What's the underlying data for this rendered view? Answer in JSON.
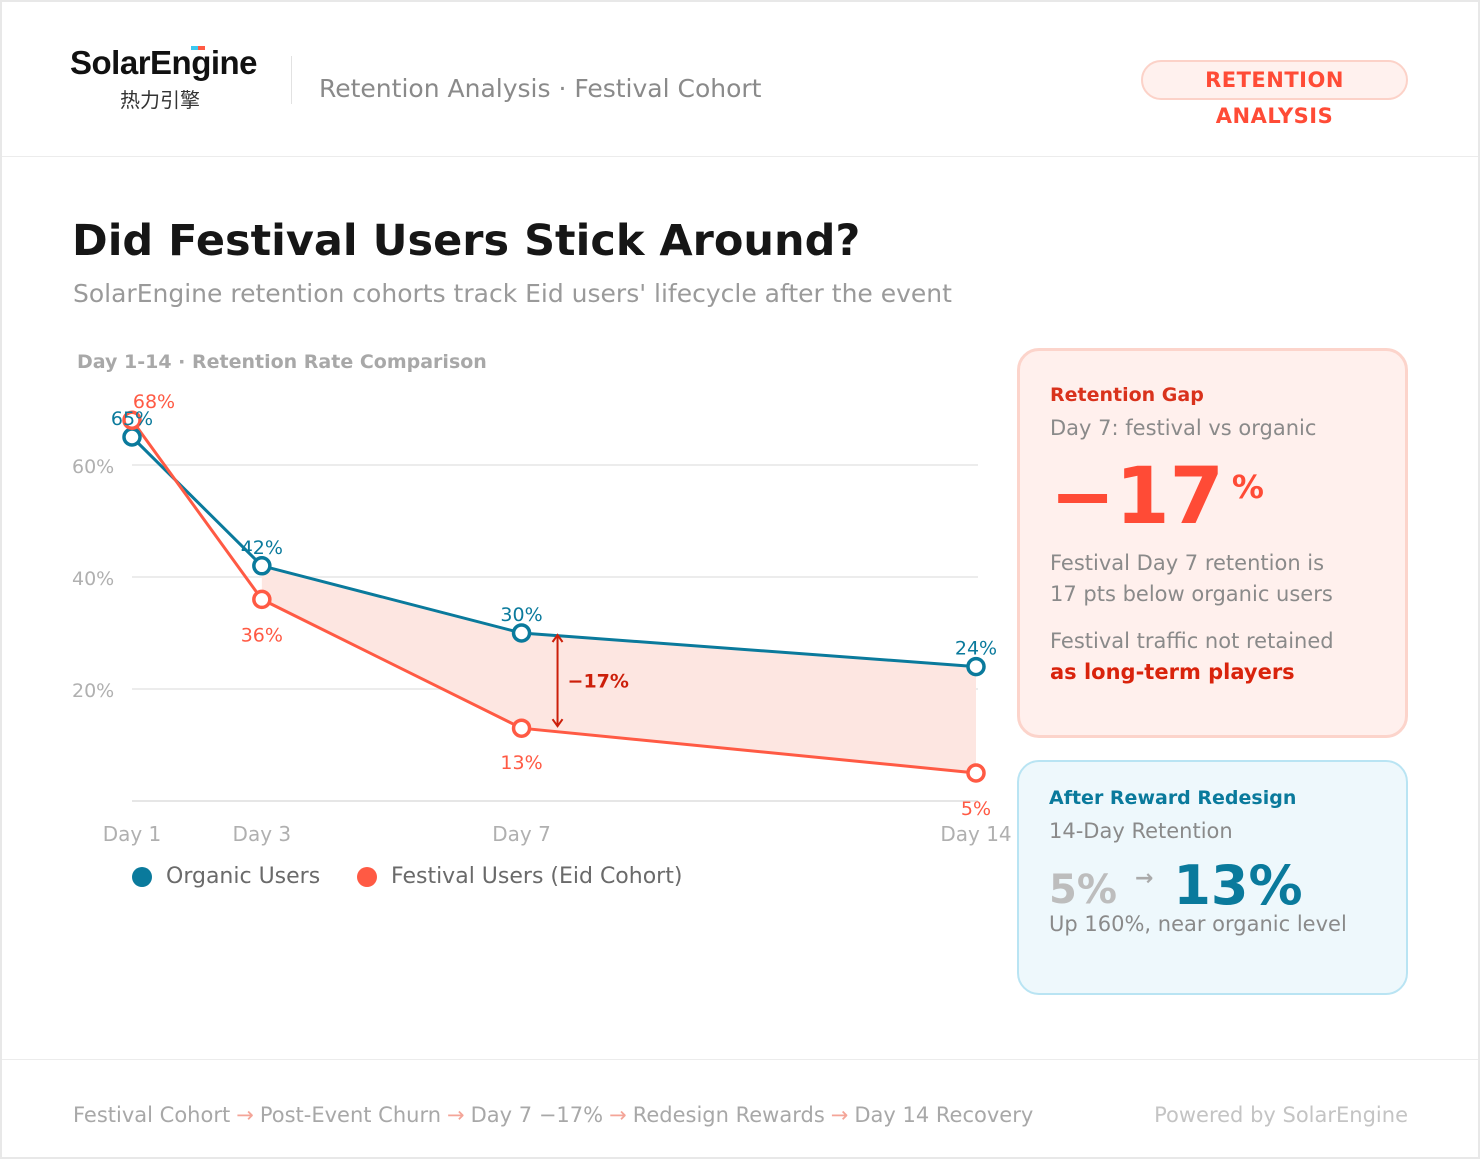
{
  "header": {
    "logo_text": "SolarEngine",
    "logo_cn": "热力引擎",
    "breadcrumb": "Retention Analysis · Festival Cohort",
    "badge": "RETENTION ANALYSIS"
  },
  "page": {
    "title": "Did Festival Users Stick Around?",
    "subtitle": "SolarEngine retention cohorts track Eid users' lifecycle after the event"
  },
  "chart_data": {
    "type": "line",
    "title": "Day 1-14 · Retention Rate Comparison",
    "x": [
      1,
      3,
      7,
      14
    ],
    "categories": [
      "Day 1",
      "Day 3",
      "Day 7",
      "Day 14"
    ],
    "ylim": [
      0,
      70
    ],
    "yticks": [
      "20%",
      "40%",
      "60%"
    ],
    "ytick_values": [
      20,
      40,
      60
    ],
    "grid": true,
    "legend_position": "bottom-left",
    "series": [
      {
        "name": "Organic Users",
        "values": [
          65,
          42,
          30,
          24
        ],
        "labels": [
          "65%",
          "42%",
          "30%",
          "24%"
        ],
        "color": "#0a7a9c"
      },
      {
        "name": "Festival Users (Eid Cohort)",
        "values": [
          68,
          36,
          13,
          5
        ],
        "labels": [
          "68%",
          "36%",
          "13%",
          "5%"
        ],
        "color": "#ff5a44"
      }
    ],
    "annotation": {
      "label": "−17%",
      "at_day": 7,
      "color": "#cc1f0a"
    },
    "shaded_gap_color": "#fde6e1"
  },
  "gap_card": {
    "heading": "Retention Gap",
    "sub": "Day 7: festival vs organic",
    "big": "−17",
    "unit": "%",
    "line1": "Festival Day 7 retention is",
    "line2": "17 pts below organic users",
    "line3": "Festival traffic not retained",
    "line4": "as long-term players"
  },
  "after_card": {
    "heading": "After Reward Redesign",
    "sub": "14-Day Retention",
    "from": "5%",
    "to": "13%",
    "note": "Up 160%, near organic level"
  },
  "footer": {
    "steps": [
      "Festival Cohort",
      "Post-Event Churn",
      "Day 7 −17%",
      "Redesign Rewards",
      "Day 14 Recovery"
    ],
    "arrow": "→",
    "powered": "Powered by SolarEngine"
  }
}
